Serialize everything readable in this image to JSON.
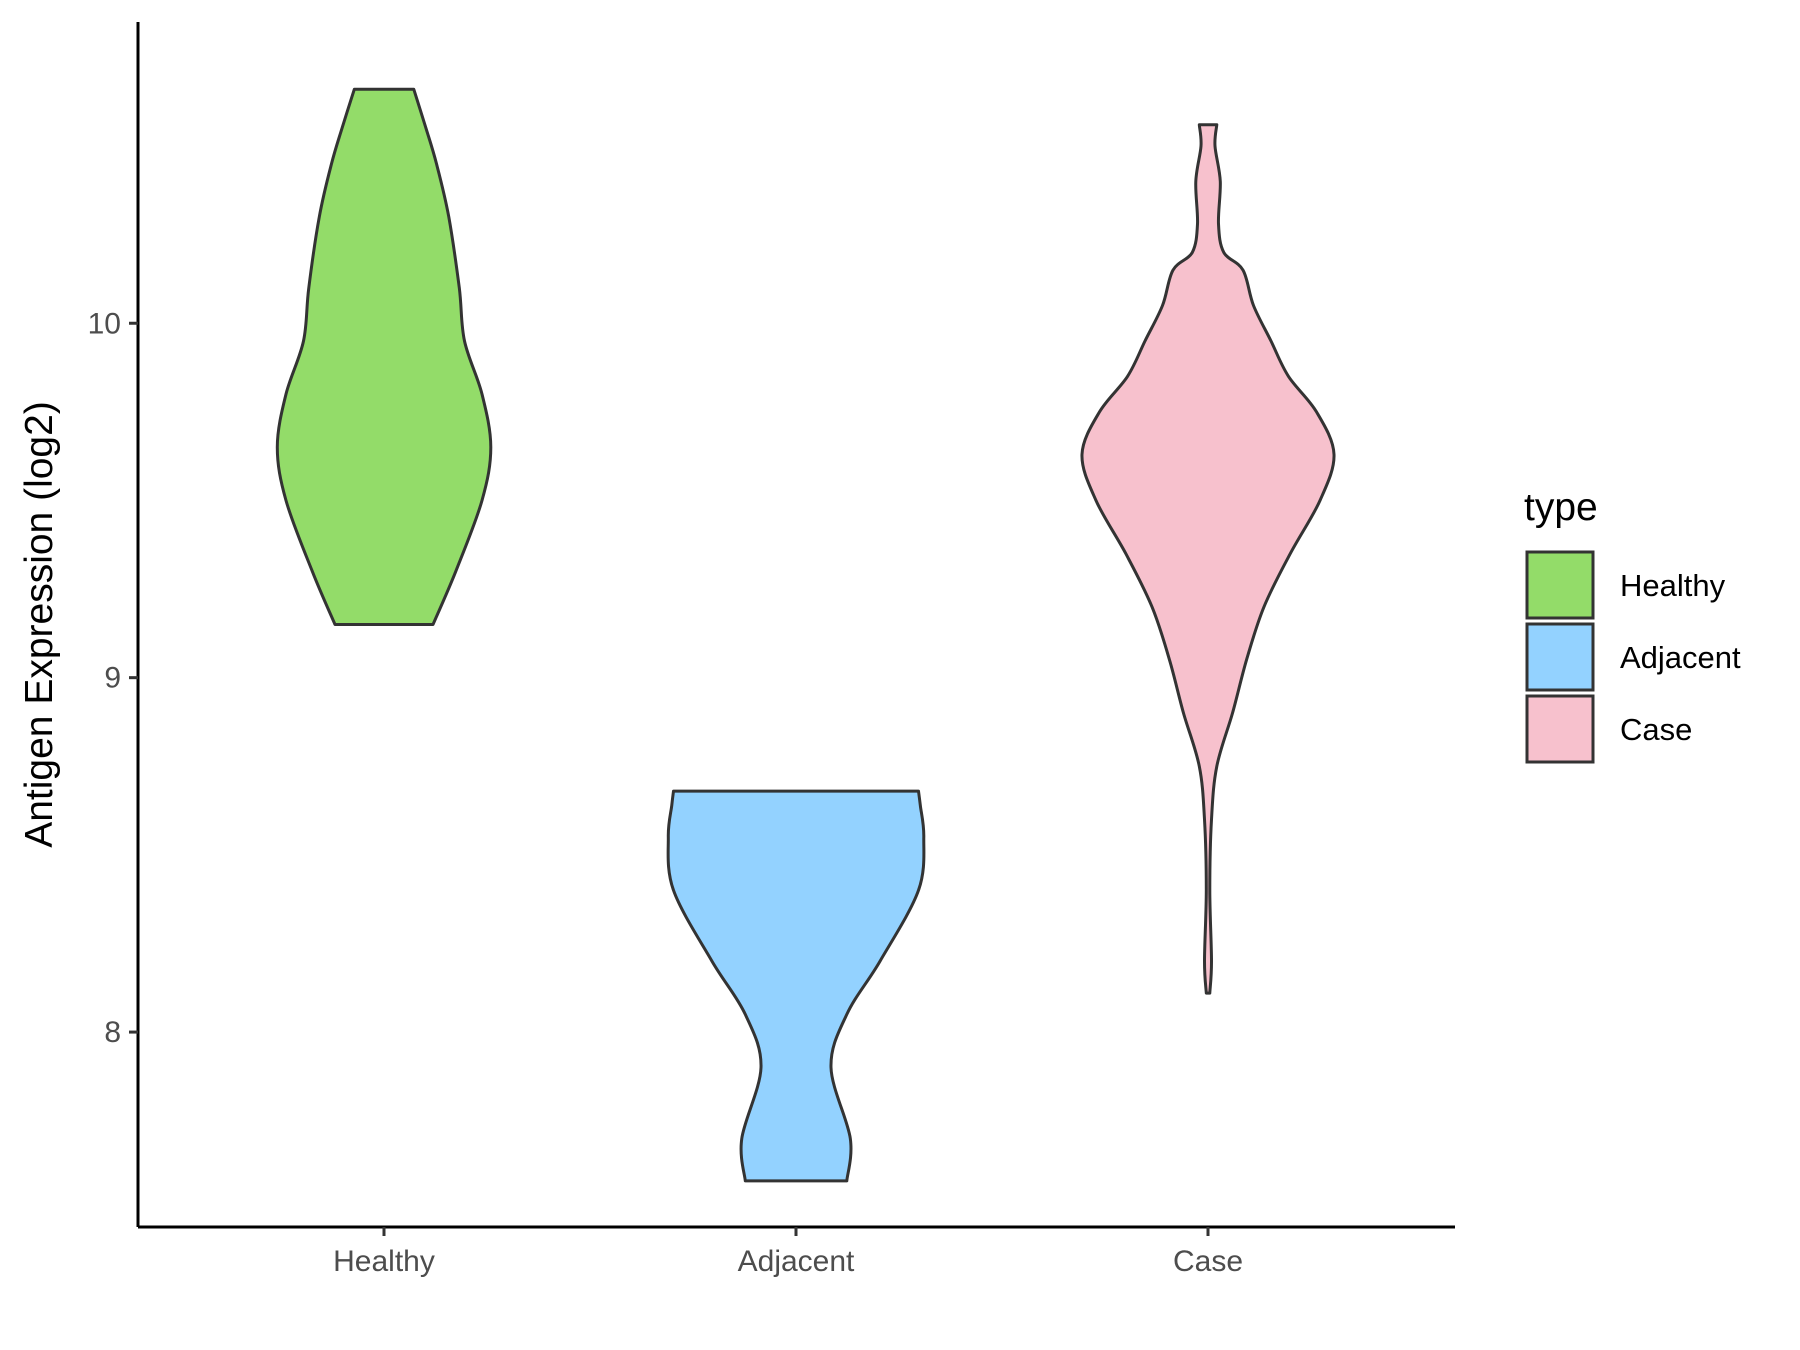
{
  "chart_data": {
    "type": "violin",
    "title": "",
    "xlabel": "",
    "ylabel": "Antigen Expression (log2)",
    "ylim": [
      7.45,
      10.85
    ],
    "y_ticks": [
      8,
      9,
      10
    ],
    "grid": false,
    "legend": {
      "title": "type",
      "placement": "right",
      "entries": [
        "Healthy",
        "Adjacent",
        "Case"
      ]
    },
    "categories": [
      "Healthy",
      "Adjacent",
      "Case"
    ],
    "series": [
      {
        "name": "Healthy",
        "color": "#93dc69",
        "min": 9.15,
        "max": 10.66,
        "density_profile": [
          [
            9.15,
            0.28
          ],
          [
            9.3,
            0.41
          ],
          [
            9.5,
            0.56
          ],
          [
            9.65,
            0.61
          ],
          [
            9.8,
            0.56
          ],
          [
            9.95,
            0.46
          ],
          [
            10.1,
            0.43
          ],
          [
            10.3,
            0.37
          ],
          [
            10.45,
            0.3
          ],
          [
            10.55,
            0.24
          ],
          [
            10.66,
            0.17
          ]
        ]
      },
      {
        "name": "Adjacent",
        "color": "#93d2ff",
        "min": 7.58,
        "max": 8.68,
        "density_profile": [
          [
            7.58,
            0.29
          ],
          [
            7.7,
            0.31
          ],
          [
            7.9,
            0.2
          ],
          [
            8.05,
            0.29
          ],
          [
            8.2,
            0.48
          ],
          [
            8.4,
            0.7
          ],
          [
            8.55,
            0.73
          ],
          [
            8.64,
            0.71
          ],
          [
            8.68,
            0.7
          ]
        ]
      },
      {
        "name": "Case",
        "color": "#f7c1cd",
        "min": 8.11,
        "max": 10.56,
        "density_profile": [
          [
            8.11,
            0.01
          ],
          [
            8.2,
            0.02
          ],
          [
            8.4,
            0.01
          ],
          [
            8.6,
            0.02
          ],
          [
            8.75,
            0.05
          ],
          [
            8.9,
            0.14
          ],
          [
            9.05,
            0.22
          ],
          [
            9.2,
            0.32
          ],
          [
            9.35,
            0.47
          ],
          [
            9.5,
            0.64
          ],
          [
            9.63,
            0.72
          ],
          [
            9.75,
            0.62
          ],
          [
            9.85,
            0.46
          ],
          [
            9.95,
            0.36
          ],
          [
            10.05,
            0.26
          ],
          [
            10.15,
            0.2
          ],
          [
            10.2,
            0.09
          ],
          [
            10.28,
            0.06
          ],
          [
            10.4,
            0.07
          ],
          [
            10.5,
            0.04
          ],
          [
            10.56,
            0.05
          ]
        ]
      }
    ]
  }
}
